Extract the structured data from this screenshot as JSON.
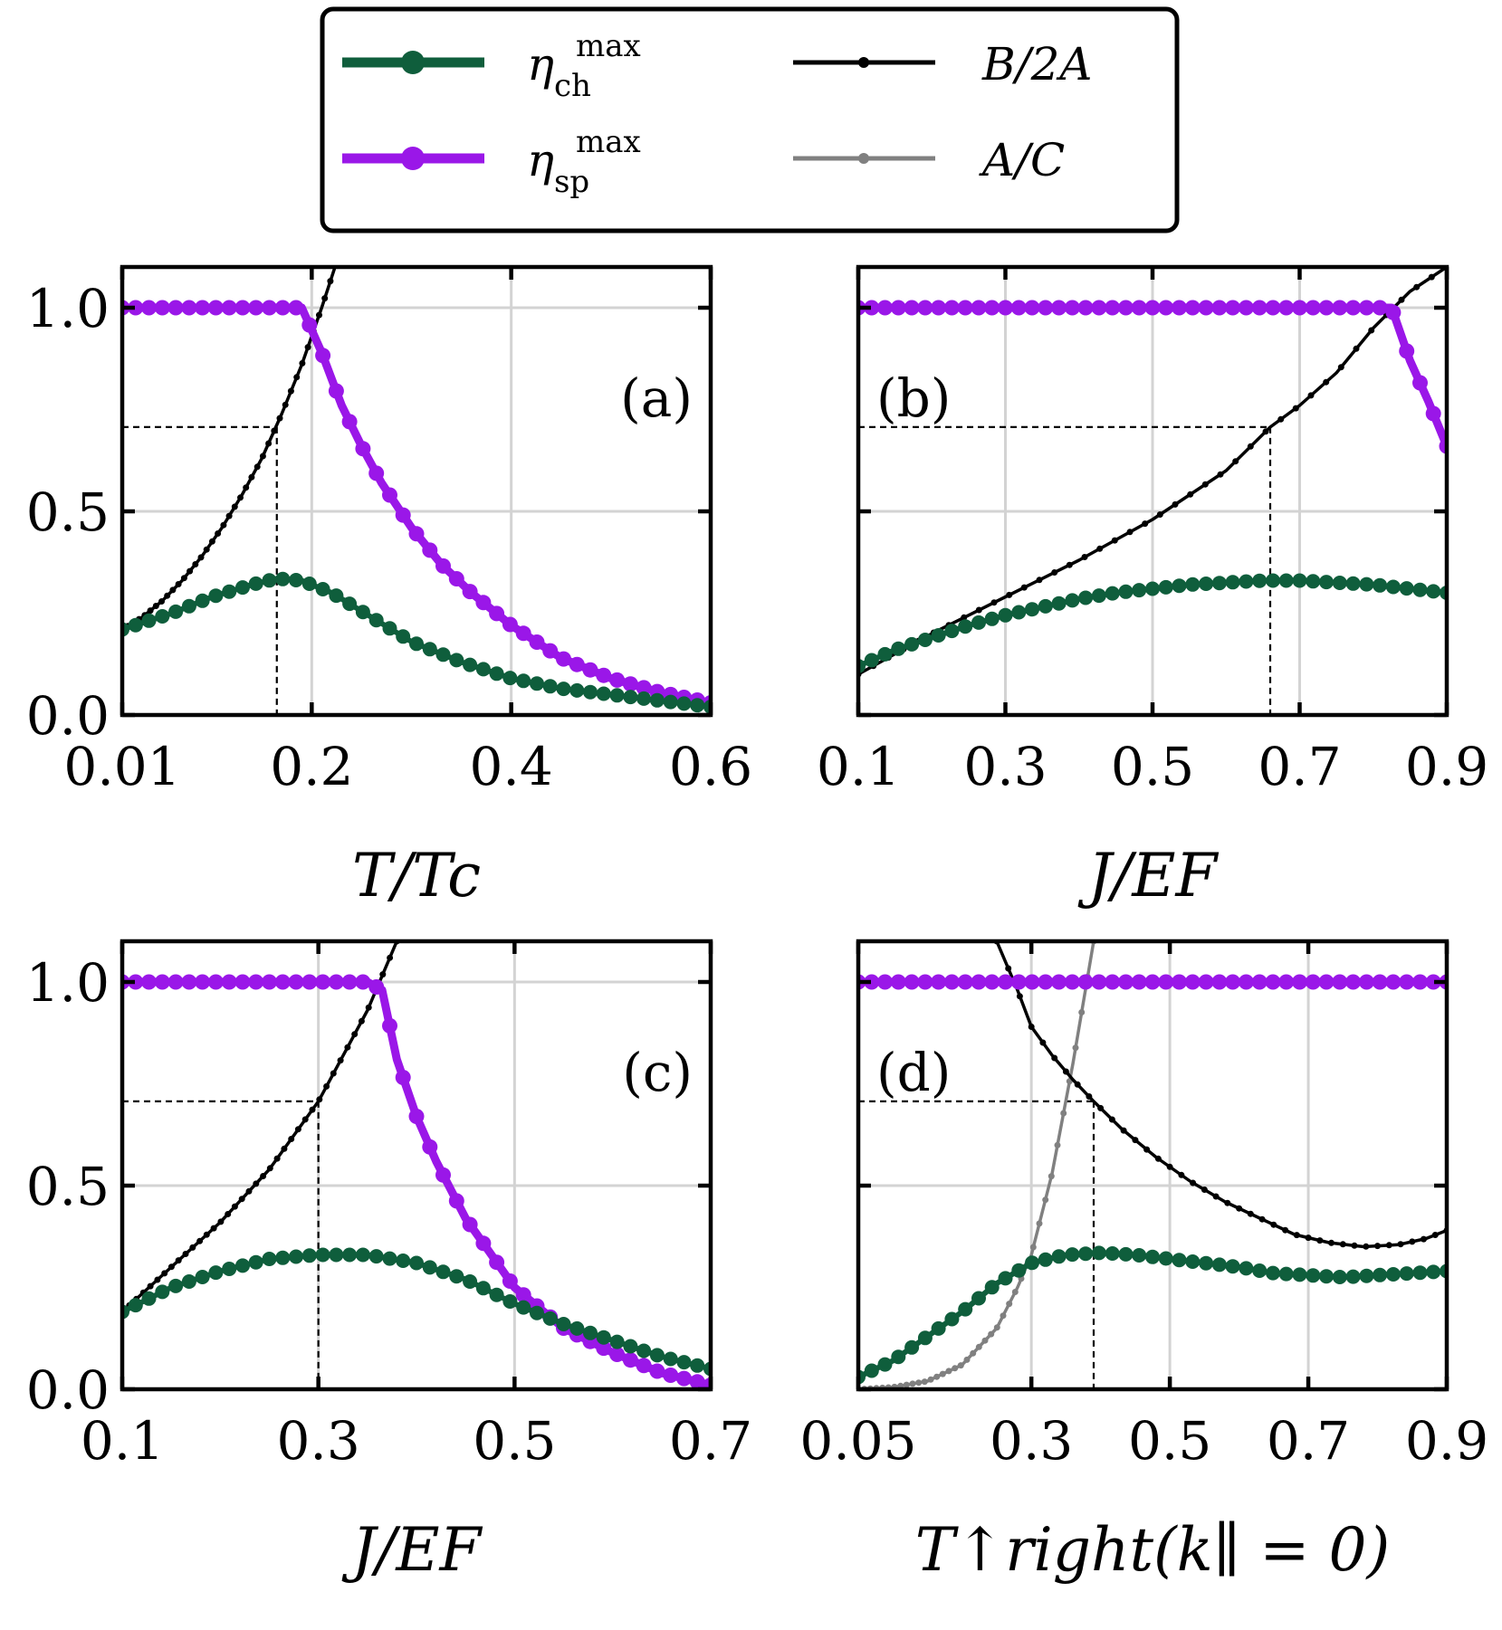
{
  "colors": {
    "ch": "#0f5e3c",
    "sp": "#9a17e8",
    "b2a": "#000000",
    "ac": "#808080",
    "grid": "#d3d3d3"
  },
  "legend": {
    "ch_base": "η",
    "ch_sup": "max",
    "ch_sub": "ch",
    "sp_base": "η",
    "sp_sup": "max",
    "sp_sub": "sp",
    "b2a": "B/2A",
    "ac": "A/C"
  },
  "chart_data": [
    {
      "type": "line",
      "panel": "(a)",
      "xlabel": "T/Tc",
      "xlim": [
        0.01,
        0.6
      ],
      "ylim": [
        0,
        1.1
      ],
      "xticks": [
        0.01,
        0.2,
        0.4,
        0.6
      ],
      "xtick_labels": [
        "0.01",
        "0.2",
        "0.4",
        "0.6"
      ],
      "yticks": [
        0,
        0.5,
        1.0
      ],
      "ytick_labels": [
        "0.0",
        "0.5",
        "1.0"
      ],
      "xgrid": [
        0.2,
        0.4
      ],
      "ygrid": [
        0.5,
        1.0
      ],
      "guide": {
        "x": 0.165,
        "y": 0.707
      },
      "series": [
        {
          "name": "η_ch^max",
          "key": "ch",
          "points": [
            [
              0.01,
              0.21
            ],
            [
              0.06,
              0.25
            ],
            [
              0.1,
              0.29
            ],
            [
              0.14,
              0.32
            ],
            [
              0.165,
              0.335
            ],
            [
              0.19,
              0.33
            ],
            [
              0.22,
              0.3
            ],
            [
              0.26,
              0.24
            ],
            [
              0.3,
              0.18
            ],
            [
              0.35,
              0.13
            ],
            [
              0.4,
              0.09
            ],
            [
              0.45,
              0.065
            ],
            [
              0.5,
              0.05
            ],
            [
              0.55,
              0.035
            ],
            [
              0.6,
              0.02
            ]
          ]
        },
        {
          "name": "η_sp^max",
          "key": "sp",
          "points": [
            [
              0.01,
              1.0
            ],
            [
              0.05,
              1.0
            ],
            [
              0.1,
              1.0
            ],
            [
              0.15,
              1.0
            ],
            [
              0.19,
              1.0
            ],
            [
              0.21,
              0.89
            ],
            [
              0.23,
              0.76
            ],
            [
              0.25,
              0.66
            ],
            [
              0.27,
              0.57
            ],
            [
              0.3,
              0.46
            ],
            [
              0.33,
              0.37
            ],
            [
              0.36,
              0.3
            ],
            [
              0.4,
              0.22
            ],
            [
              0.45,
              0.14
            ],
            [
              0.5,
              0.09
            ],
            [
              0.55,
              0.055
            ],
            [
              0.6,
              0.03
            ]
          ]
        },
        {
          "name": "B/2A",
          "key": "b2a",
          "points": [
            [
              0.01,
              0.21
            ],
            [
              0.03,
              0.24
            ],
            [
              0.05,
              0.28
            ],
            [
              0.07,
              0.33
            ],
            [
              0.09,
              0.39
            ],
            [
              0.11,
              0.46
            ],
            [
              0.13,
              0.54
            ],
            [
              0.15,
              0.63
            ],
            [
              0.17,
              0.74
            ],
            [
              0.19,
              0.86
            ],
            [
              0.21,
              1.0
            ],
            [
              0.23,
              1.15
            ]
          ]
        }
      ]
    },
    {
      "type": "line",
      "panel": "(b)",
      "xlabel": "J/EF",
      "xlim": [
        0.1,
        0.9
      ],
      "ylim": [
        0,
        1.1
      ],
      "xticks": [
        0.1,
        0.3,
        0.5,
        0.7,
        0.9
      ],
      "xtick_labels": [
        "0.1",
        "0.3",
        "0.5",
        "0.7",
        "0.9"
      ],
      "yticks": [
        0,
        0.5,
        1.0
      ],
      "ytick_labels": [
        "",
        "",
        ""
      ],
      "xgrid": [
        0.3,
        0.5,
        0.7
      ],
      "ygrid": [
        0.5,
        1.0
      ],
      "guide": {
        "x": 0.66,
        "y": 0.707
      },
      "series": [
        {
          "name": "η_ch^max",
          "key": "ch",
          "points": [
            [
              0.1,
              0.12
            ],
            [
              0.15,
              0.16
            ],
            [
              0.2,
              0.19
            ],
            [
              0.25,
              0.22
            ],
            [
              0.3,
              0.245
            ],
            [
              0.35,
              0.265
            ],
            [
              0.4,
              0.285
            ],
            [
              0.45,
              0.3
            ],
            [
              0.5,
              0.31
            ],
            [
              0.55,
              0.32
            ],
            [
              0.6,
              0.325
            ],
            [
              0.65,
              0.33
            ],
            [
              0.7,
              0.33
            ],
            [
              0.75,
              0.325
            ],
            [
              0.8,
              0.32
            ],
            [
              0.85,
              0.31
            ],
            [
              0.9,
              0.3
            ]
          ]
        },
        {
          "name": "η_sp^max",
          "key": "sp",
          "points": [
            [
              0.1,
              1.0
            ],
            [
              0.2,
              1.0
            ],
            [
              0.3,
              1.0
            ],
            [
              0.4,
              1.0
            ],
            [
              0.5,
              1.0
            ],
            [
              0.6,
              1.0
            ],
            [
              0.7,
              1.0
            ],
            [
              0.8,
              1.0
            ],
            [
              0.825,
              1.0
            ],
            [
              0.85,
              0.87
            ],
            [
              0.875,
              0.77
            ],
            [
              0.9,
              0.66
            ]
          ]
        },
        {
          "name": "B/2A",
          "key": "b2a",
          "points": [
            [
              0.1,
              0.1
            ],
            [
              0.15,
              0.15
            ],
            [
              0.2,
              0.2
            ],
            [
              0.25,
              0.245
            ],
            [
              0.3,
              0.29
            ],
            [
              0.35,
              0.335
            ],
            [
              0.4,
              0.38
            ],
            [
              0.45,
              0.43
            ],
            [
              0.5,
              0.48
            ],
            [
              0.55,
              0.54
            ],
            [
              0.6,
              0.6
            ],
            [
              0.66,
              0.707
            ],
            [
              0.7,
              0.76
            ],
            [
              0.75,
              0.84
            ],
            [
              0.8,
              0.95
            ],
            [
              0.85,
              1.04
            ],
            [
              0.9,
              1.1
            ]
          ]
        }
      ]
    },
    {
      "type": "line",
      "panel": "(c)",
      "xlabel": "J/EF",
      "xlim": [
        0.1,
        0.7
      ],
      "ylim": [
        0,
        1.1
      ],
      "xticks": [
        0.1,
        0.3,
        0.5,
        0.7
      ],
      "xtick_labels": [
        "0.1",
        "0.3",
        "0.5",
        "0.7"
      ],
      "yticks": [
        0,
        0.5,
        1.0
      ],
      "ytick_labels": [
        "0.0",
        "0.5",
        "1.0"
      ],
      "xgrid": [
        0.3,
        0.5
      ],
      "ygrid": [
        0.5,
        1.0
      ],
      "guide": {
        "x": 0.3,
        "y": 0.707
      },
      "series": [
        {
          "name": "η_ch^max",
          "key": "ch",
          "points": [
            [
              0.1,
              0.19
            ],
            [
              0.15,
              0.25
            ],
            [
              0.2,
              0.29
            ],
            [
              0.25,
              0.32
            ],
            [
              0.3,
              0.33
            ],
            [
              0.35,
              0.33
            ],
            [
              0.4,
              0.31
            ],
            [
              0.45,
              0.27
            ],
            [
              0.5,
              0.21
            ],
            [
              0.55,
              0.16
            ],
            [
              0.6,
              0.12
            ],
            [
              0.65,
              0.08
            ],
            [
              0.7,
              0.05
            ]
          ]
        },
        {
          "name": "η_sp^max",
          "key": "sp",
          "points": [
            [
              0.1,
              1.0
            ],
            [
              0.15,
              1.0
            ],
            [
              0.2,
              1.0
            ],
            [
              0.25,
              1.0
            ],
            [
              0.3,
              1.0
            ],
            [
              0.35,
              1.0
            ],
            [
              0.365,
              0.98
            ],
            [
              0.38,
              0.81
            ],
            [
              0.4,
              0.67
            ],
            [
              0.42,
              0.56
            ],
            [
              0.45,
              0.42
            ],
            [
              0.5,
              0.25
            ],
            [
              0.55,
              0.15
            ],
            [
              0.6,
              0.09
            ],
            [
              0.65,
              0.04
            ],
            [
              0.7,
              0.01
            ]
          ]
        },
        {
          "name": "B/2A",
          "key": "b2a",
          "points": [
            [
              0.1,
              0.19
            ],
            [
              0.15,
              0.3
            ],
            [
              0.2,
              0.41
            ],
            [
              0.25,
              0.54
            ],
            [
              0.3,
              0.707
            ],
            [
              0.35,
              0.93
            ],
            [
              0.38,
              1.1
            ]
          ]
        }
      ]
    },
    {
      "type": "line",
      "panel": "(d)",
      "xlabel": "T↑right(k∥ = 0)",
      "xlim": [
        0.05,
        0.9
      ],
      "ylim": [
        0,
        1.1
      ],
      "xticks": [
        0.05,
        0.3,
        0.5,
        0.7,
        0.9
      ],
      "xtick_labels": [
        "0.05",
        "0.3",
        "0.5",
        "0.7",
        "0.9"
      ],
      "yticks": [
        0,
        0.5,
        1.0
      ],
      "ytick_labels": [
        "",
        "",
        ""
      ],
      "xgrid": [
        0.3,
        0.5,
        0.7
      ],
      "ygrid": [
        0.5,
        1.0
      ],
      "guide": {
        "x": 0.39,
        "y": 0.707
      },
      "series": [
        {
          "name": "η_ch^max",
          "key": "ch",
          "points": [
            [
              0.05,
              0.03
            ],
            [
              0.1,
              0.07
            ],
            [
              0.15,
              0.13
            ],
            [
              0.2,
              0.19
            ],
            [
              0.25,
              0.26
            ],
            [
              0.3,
              0.31
            ],
            [
              0.35,
              0.33
            ],
            [
              0.4,
              0.335
            ],
            [
              0.45,
              0.33
            ],
            [
              0.5,
              0.32
            ],
            [
              0.55,
              0.31
            ],
            [
              0.6,
              0.3
            ],
            [
              0.65,
              0.285
            ],
            [
              0.7,
              0.28
            ],
            [
              0.75,
              0.275
            ],
            [
              0.8,
              0.28
            ],
            [
              0.85,
              0.285
            ],
            [
              0.9,
              0.29
            ]
          ]
        },
        {
          "name": "η_sp^max",
          "key": "sp",
          "points": [
            [
              0.05,
              1.0
            ],
            [
              0.2,
              1.0
            ],
            [
              0.35,
              1.0
            ],
            [
              0.5,
              1.0
            ],
            [
              0.65,
              1.0
            ],
            [
              0.8,
              1.0
            ],
            [
              0.9,
              1.0
            ]
          ]
        },
        {
          "name": "B/2A",
          "key": "b2a",
          "points": [
            [
              0.25,
              1.1
            ],
            [
              0.28,
              0.98
            ],
            [
              0.3,
              0.89
            ],
            [
              0.33,
              0.82
            ],
            [
              0.36,
              0.76
            ],
            [
              0.39,
              0.707
            ],
            [
              0.43,
              0.64
            ],
            [
              0.48,
              0.57
            ],
            [
              0.53,
              0.51
            ],
            [
              0.58,
              0.46
            ],
            [
              0.63,
              0.42
            ],
            [
              0.68,
              0.38
            ],
            [
              0.73,
              0.36
            ],
            [
              0.78,
              0.35
            ],
            [
              0.83,
              0.355
            ],
            [
              0.87,
              0.37
            ],
            [
              0.9,
              0.39
            ]
          ]
        },
        {
          "name": "A/C",
          "key": "ac",
          "points": [
            [
              0.05,
              0.0
            ],
            [
              0.1,
              0.005
            ],
            [
              0.15,
              0.02
            ],
            [
              0.2,
              0.06
            ],
            [
              0.25,
              0.15
            ],
            [
              0.28,
              0.25
            ],
            [
              0.3,
              0.33
            ],
            [
              0.33,
              0.53
            ],
            [
              0.36,
              0.8
            ],
            [
              0.38,
              1.0
            ],
            [
              0.39,
              1.1
            ]
          ]
        }
      ]
    }
  ]
}
